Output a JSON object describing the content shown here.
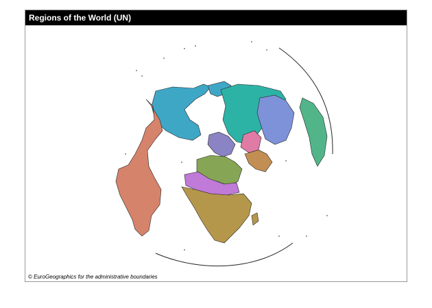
{
  "map": {
    "title": "Regions of the World (UN)",
    "credit": "© EuroGeographics for the administrative boundaries",
    "projection": "azimuthal, north-polar view",
    "region_colors": {
      "northern_america": "#3fa7c6",
      "latin_america": "#d6836b",
      "europe": "#8a84c4",
      "northern_africa_western_asia": "#86a655",
      "sub_saharan_africa": "#b5974c",
      "russia_central_asia": "#2db3a6",
      "eastern_asia": "#7e92da",
      "southern_asia": "#c38e53",
      "south_eastern_asia": "#52b58a",
      "central_asia": "#e07ba6",
      "middle_africa_sahel": "#c07ad8",
      "oceania": "#4bb688"
    }
  }
}
